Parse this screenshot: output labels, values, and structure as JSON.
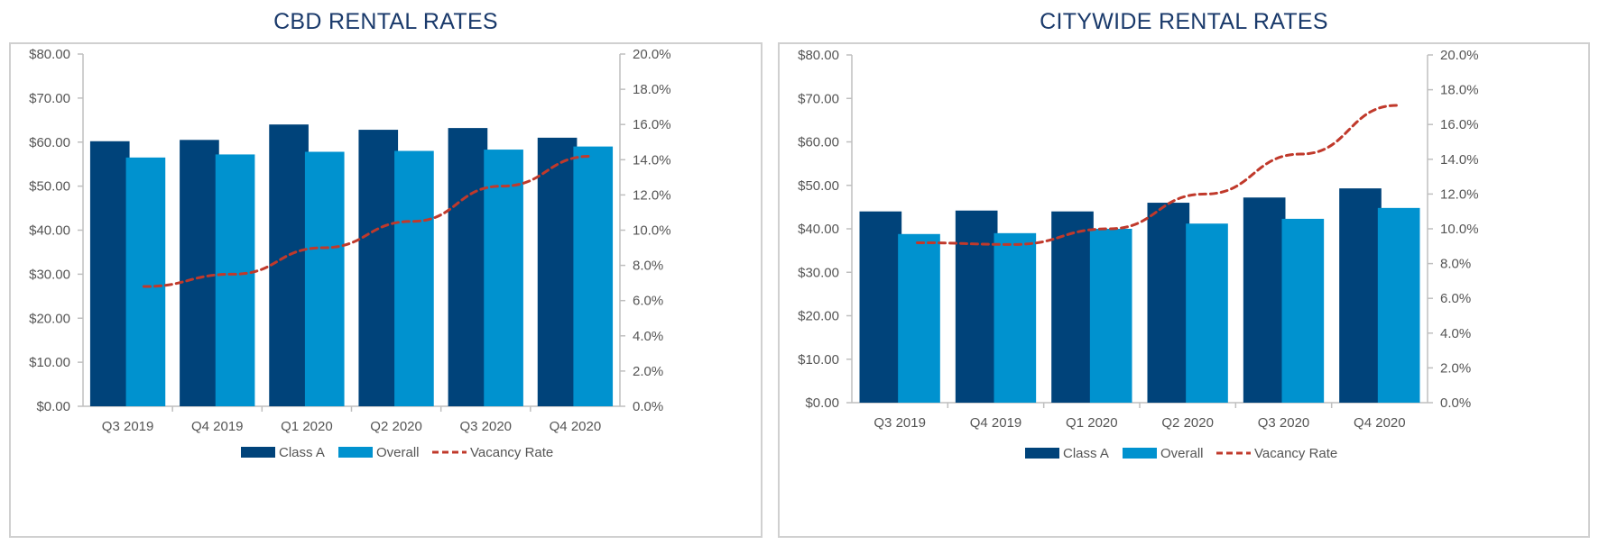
{
  "colors": {
    "class_a": "#00437a",
    "overall": "#0092cf",
    "vacancy": "#c0392b",
    "axis": "#bfbfbf",
    "title": "#1a3a6b"
  },
  "chart_data": [
    {
      "type": "bar",
      "title": "CBD RENTAL RATES",
      "categories": [
        "Q3 2019",
        "Q4 2019",
        "Q1 2020",
        "Q2 2020",
        "Q3 2020",
        "Q4 2020"
      ],
      "series": [
        {
          "name": "Class A",
          "kind": "bar",
          "axis": "left",
          "values": [
            60.2,
            60.5,
            64.0,
            62.8,
            63.2,
            61.0
          ]
        },
        {
          "name": "Overall",
          "kind": "bar",
          "axis": "left",
          "values": [
            56.5,
            57.2,
            57.8,
            58.0,
            58.3,
            59.0
          ]
        },
        {
          "name": "Vacancy Rate",
          "kind": "line",
          "style": "dashed",
          "axis": "right",
          "values": [
            6.8,
            7.5,
            9.0,
            10.5,
            12.5,
            14.2
          ]
        }
      ],
      "y_left": {
        "min": 0,
        "max": 80,
        "ticks": [
          "$0.00",
          "$10.00",
          "$20.00",
          "$30.00",
          "$40.00",
          "$50.00",
          "$60.00",
          "$70.00",
          "$80.00"
        ]
      },
      "y_right": {
        "min": 0,
        "max": 20,
        "ticks": [
          "0.0%",
          "2.0%",
          "4.0%",
          "6.0%",
          "8.0%",
          "10.0%",
          "12.0%",
          "14.0%",
          "16.0%",
          "18.0%",
          "20.0%"
        ]
      },
      "legend": [
        "Class A",
        "Overall",
        "Vacancy Rate"
      ],
      "legend_position": "bottom"
    },
    {
      "type": "bar",
      "title": "CITYWIDE RENTAL RATES",
      "categories": [
        "Q3 2019",
        "Q4 2019",
        "Q1 2020",
        "Q2 2020",
        "Q3 2020",
        "Q4 2020"
      ],
      "series": [
        {
          "name": "Class A",
          "kind": "bar",
          "axis": "left",
          "values": [
            44.0,
            44.2,
            44.0,
            46.0,
            47.2,
            49.3
          ]
        },
        {
          "name": "Overall",
          "kind": "bar",
          "axis": "left",
          "values": [
            38.8,
            39.0,
            40.0,
            41.2,
            42.3,
            44.8
          ]
        },
        {
          "name": "Vacancy Rate",
          "kind": "line",
          "style": "dashed",
          "axis": "right",
          "values": [
            9.2,
            9.1,
            10.0,
            12.0,
            14.3,
            17.1
          ]
        }
      ],
      "y_left": {
        "min": 0,
        "max": 80,
        "ticks": [
          "$0.00",
          "$10.00",
          "$20.00",
          "$30.00",
          "$40.00",
          "$50.00",
          "$60.00",
          "$70.00",
          "$80.00"
        ]
      },
      "y_right": {
        "min": 0,
        "max": 20,
        "ticks": [
          "0.0%",
          "2.0%",
          "4.0%",
          "6.0%",
          "8.0%",
          "10.0%",
          "12.0%",
          "14.0%",
          "16.0%",
          "18.0%",
          "20.0%"
        ]
      },
      "legend": [
        "Class A",
        "Overall",
        "Vacancy Rate"
      ],
      "legend_position": "bottom"
    }
  ]
}
